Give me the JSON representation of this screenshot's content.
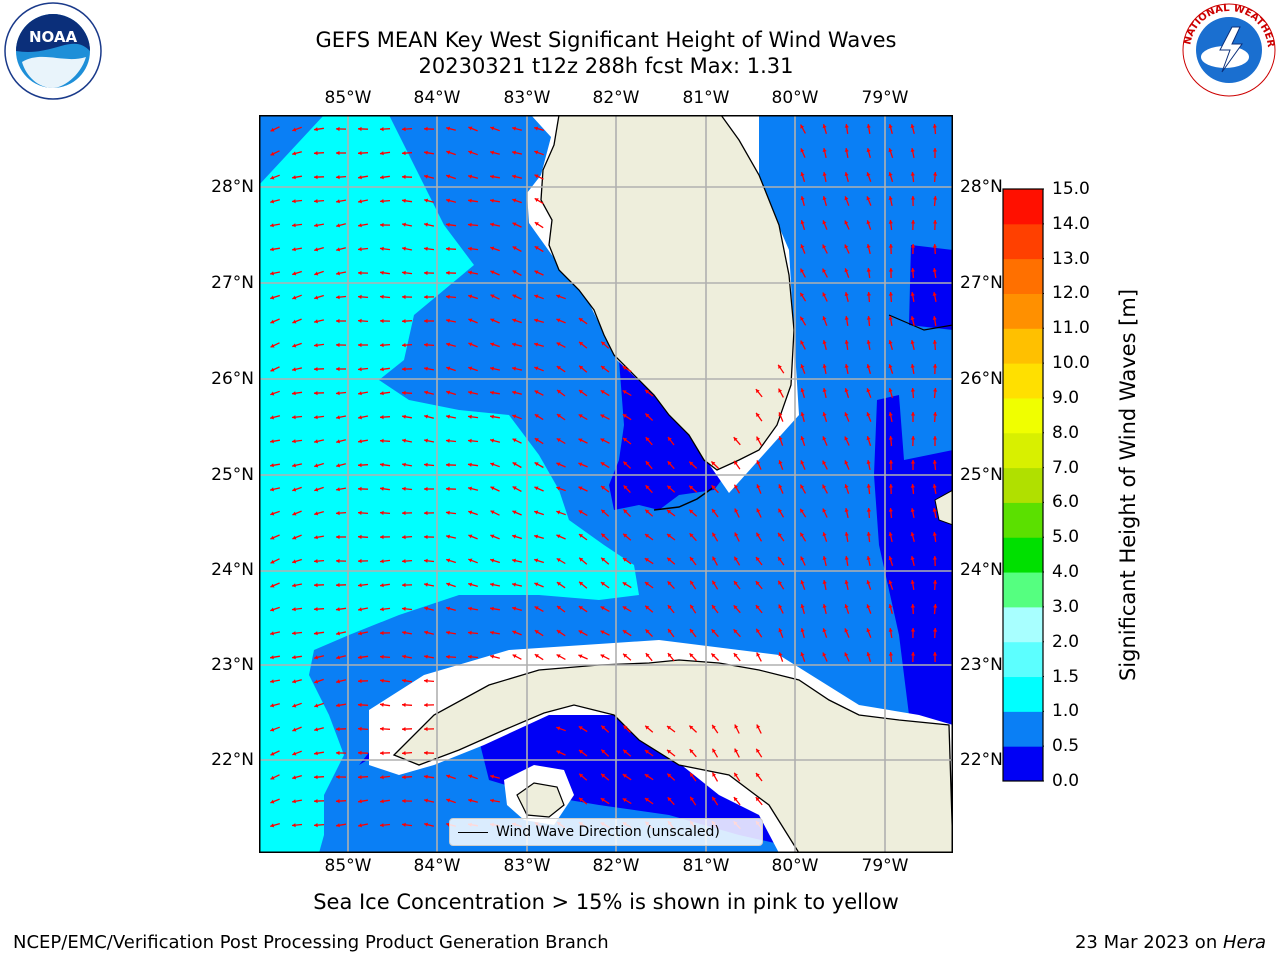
{
  "header": {
    "title_line1": "GEFS MEAN Key West Significant Height of Wind Waves",
    "title_line2": "20230321 t12z 288h fcst   Max: 1.31"
  },
  "logos": {
    "left": "NOAA",
    "right": "NATIONAL WEATHER SERVICE"
  },
  "map": {
    "lon_ticks": [
      "85°W",
      "84°W",
      "83°W",
      "82°W",
      "81°W",
      "80°W",
      "79°W"
    ],
    "lat_ticks": [
      "28°N",
      "27°N",
      "26°N",
      "25°N",
      "24°N",
      "23°N",
      "22°N"
    ],
    "legend_label": "Wind Wave Direction (unscaled)",
    "colors": {
      "land": "#eeeedc",
      "band_0_0_5": "#0000f5",
      "band_0_5_1_0": "#0a7ff5",
      "band_1_0_1_5": "#00ffff",
      "arrow": "#ff0000"
    }
  },
  "colorbar": {
    "ticks": [
      "0.0",
      "0.5",
      "1.0",
      "1.5",
      "2.0",
      "3.0",
      "4.0",
      "5.0",
      "6.0",
      "7.0",
      "8.0",
      "9.0",
      "10.0",
      "11.0",
      "12.0",
      "13.0",
      "14.0",
      "15.0"
    ],
    "colors": [
      "#0000f5",
      "#0a7ff5",
      "#00ffff",
      "#5cffff",
      "#a8ffff",
      "#55ff80",
      "#00e000",
      "#5be000",
      "#b0e000",
      "#d8f000",
      "#f0ff00",
      "#ffe000",
      "#ffc000",
      "#ff9000",
      "#ff7000",
      "#ff4000",
      "#ff1000"
    ],
    "label": "Significant Height of Wind Waves [m]"
  },
  "note": "Sea Ice Concentration > 15% is shown in pink to yellow",
  "footer": {
    "left": "NCEP/EMC/Verification Post Processing Product Generation Branch",
    "right_date": "23 Mar 2023 on ",
    "right_machine": "Hera"
  }
}
